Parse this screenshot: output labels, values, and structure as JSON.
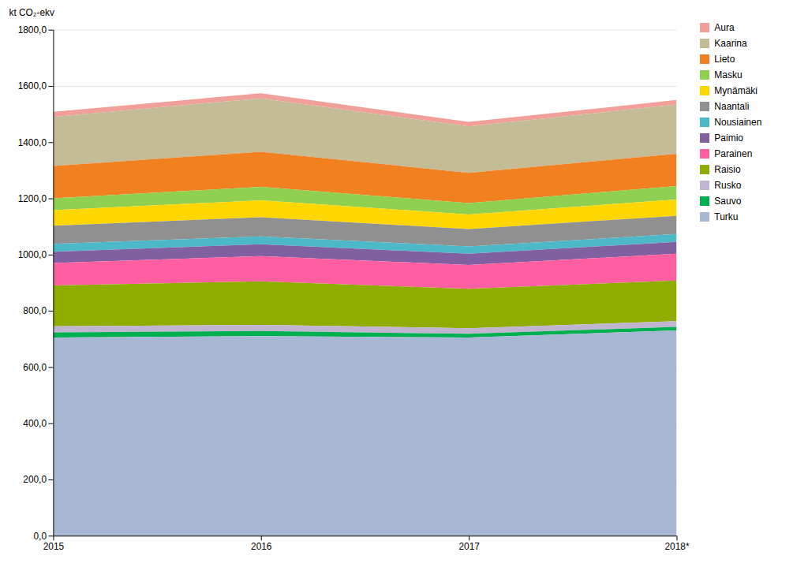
{
  "chart_data": {
    "type": "area",
    "stacked": true,
    "ylabel": "kt CO₂-ekv",
    "x": [
      2015,
      2016,
      2017,
      2018
    ],
    "xlim": [
      2015,
      2018
    ],
    "xticks": [
      2015,
      2016,
      2017,
      {
        "value": 2018,
        "label": "2018*"
      }
    ],
    "ylim": [
      0,
      1800
    ],
    "yticks": [
      {
        "value": 0,
        "label": "0,0"
      },
      {
        "value": 200,
        "label": "200,0"
      },
      {
        "value": 400,
        "label": "400,0"
      },
      {
        "value": 600,
        "label": "600,0"
      },
      {
        "value": 800,
        "label": "800,0"
      },
      {
        "value": 1000,
        "label": "1000,0"
      },
      {
        "value": 1200,
        "label": "1200,0"
      },
      {
        "value": 1400,
        "label": "1400,0"
      },
      {
        "value": 1600,
        "label": "1600,0"
      },
      {
        "value": 1800,
        "label": "1800,0"
      }
    ],
    "grid": true,
    "legend": "upper right",
    "series": [
      {
        "name": "Aura",
        "color": "#f0a098",
        "values": [
          18,
          18,
          16,
          16
        ]
      },
      {
        "name": "Kaarina",
        "color": "#c4bc96",
        "values": [
          175,
          190,
          165,
          175
        ]
      },
      {
        "name": "Lieto",
        "color": "#f08020",
        "values": [
          115,
          125,
          108,
          115
        ]
      },
      {
        "name": "Masku",
        "color": "#90d050",
        "values": [
          42,
          48,
          40,
          48
        ]
      },
      {
        "name": "Mynämäki",
        "color": "#ffd700",
        "values": [
          55,
          60,
          52,
          58
        ]
      },
      {
        "name": "Naantali",
        "color": "#909090",
        "values": [
          65,
          68,
          62,
          65
        ]
      },
      {
        "name": "Nousiainen",
        "color": "#4db8c8",
        "values": [
          28,
          28,
          26,
          28
        ]
      },
      {
        "name": "Paimio",
        "color": "#8060a0",
        "values": [
          40,
          42,
          40,
          42
        ]
      },
      {
        "name": "Parainen",
        "color": "#ff5fa0",
        "values": [
          80,
          90,
          85,
          95
        ]
      },
      {
        "name": "Raisio",
        "color": "#8fad00",
        "values": [
          145,
          155,
          140,
          145
        ]
      },
      {
        "name": "Rusko",
        "color": "#c0b4d0",
        "values": [
          22,
          22,
          20,
          20
        ]
      },
      {
        "name": "Sauvo",
        "color": "#00b050",
        "values": [
          18,
          18,
          13,
          13
        ]
      },
      {
        "name": "Turku",
        "color": "#a8b8d4",
        "values": [
          705,
          710,
          705,
          730
        ]
      }
    ]
  }
}
